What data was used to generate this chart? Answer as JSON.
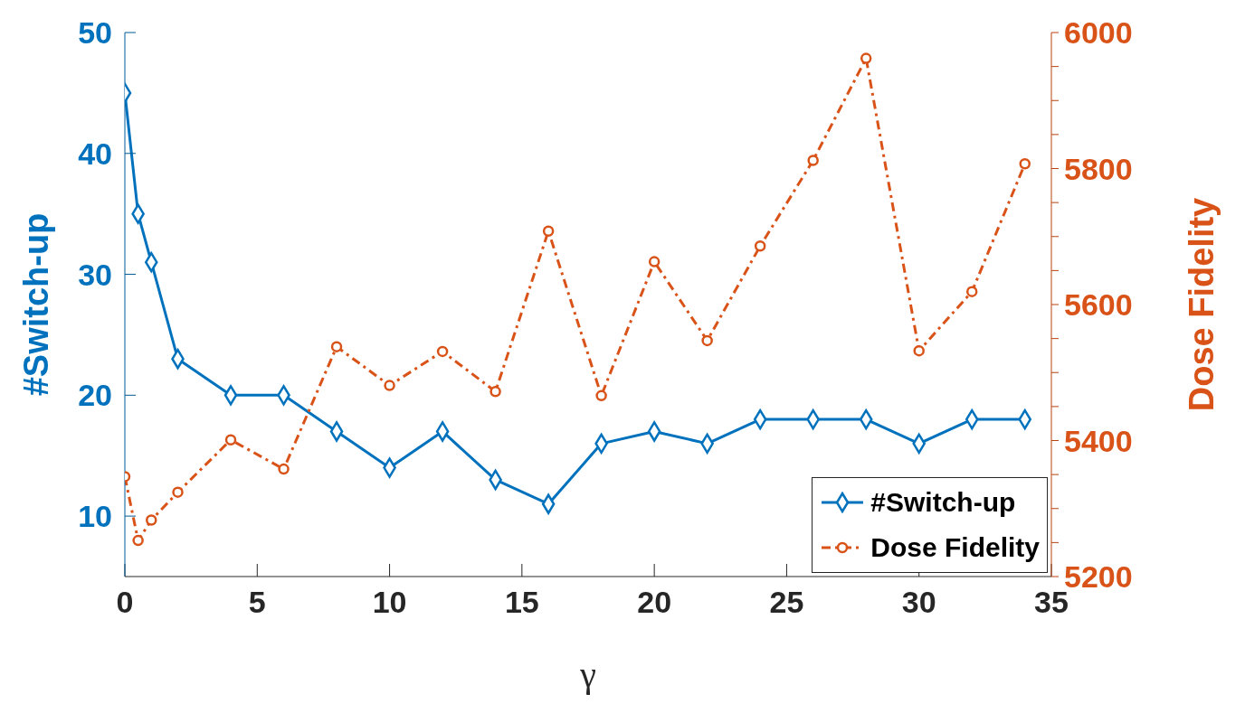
{
  "chart_data": {
    "type": "line",
    "xlabel": "γ",
    "ylabel": "#Switch-up",
    "y2label": "Dose Fidelity",
    "x": [
      0,
      0.5,
      1,
      2,
      4,
      6,
      8,
      10,
      12,
      14,
      16,
      18,
      20,
      22,
      24,
      26,
      28,
      30,
      32,
      34
    ],
    "series": [
      {
        "name": "#Switch-up",
        "color": "#0072bd",
        "marker": "diamond",
        "line_style": "solid",
        "values": [
          45,
          35,
          31,
          23,
          20,
          20,
          17,
          14,
          17,
          13,
          11,
          16,
          17,
          16,
          18,
          18,
          18,
          16,
          18,
          18
        ]
      },
      {
        "name": "Dose Fidelity",
        "color": "#d95319",
        "marker": "circle",
        "line_style": "dashed",
        "axis": "y2",
        "values": [
          5347,
          5253,
          5283,
          5324,
          5401,
          5358,
          5538,
          5481,
          5531,
          5472,
          5708,
          5466,
          5663,
          5547,
          5686,
          5812,
          5962,
          5532,
          5619,
          5807
        ]
      }
    ],
    "xlim": [
      0,
      35
    ],
    "xticks": [
      0,
      5,
      10,
      15,
      20,
      25,
      30,
      35
    ],
    "ylim": [
      5,
      50
    ],
    "yticks": [
      10,
      20,
      30,
      40,
      50
    ],
    "y2lim": [
      5200,
      6000
    ],
    "y2ticks": [
      5200,
      {
        "value": 5250,
        "label": null
      },
      {
        "value": 5300,
        "label": null
      },
      {
        "value": 5350,
        "label": null
      },
      5400,
      {
        "value": 5450,
        "label": null
      },
      {
        "value": 5500,
        "label": null
      },
      {
        "value": 5550,
        "label": null
      },
      5600,
      {
        "value": 5650,
        "label": null
      },
      {
        "value": 5700,
        "label": null
      },
      {
        "value": 5750,
        "label": null
      },
      5800,
      {
        "value": 5850,
        "label": null
      },
      {
        "value": 5900,
        "label": null
      },
      {
        "value": 5950,
        "label": null
      },
      6000
    ],
    "grid": false,
    "legend": "bottom right"
  }
}
